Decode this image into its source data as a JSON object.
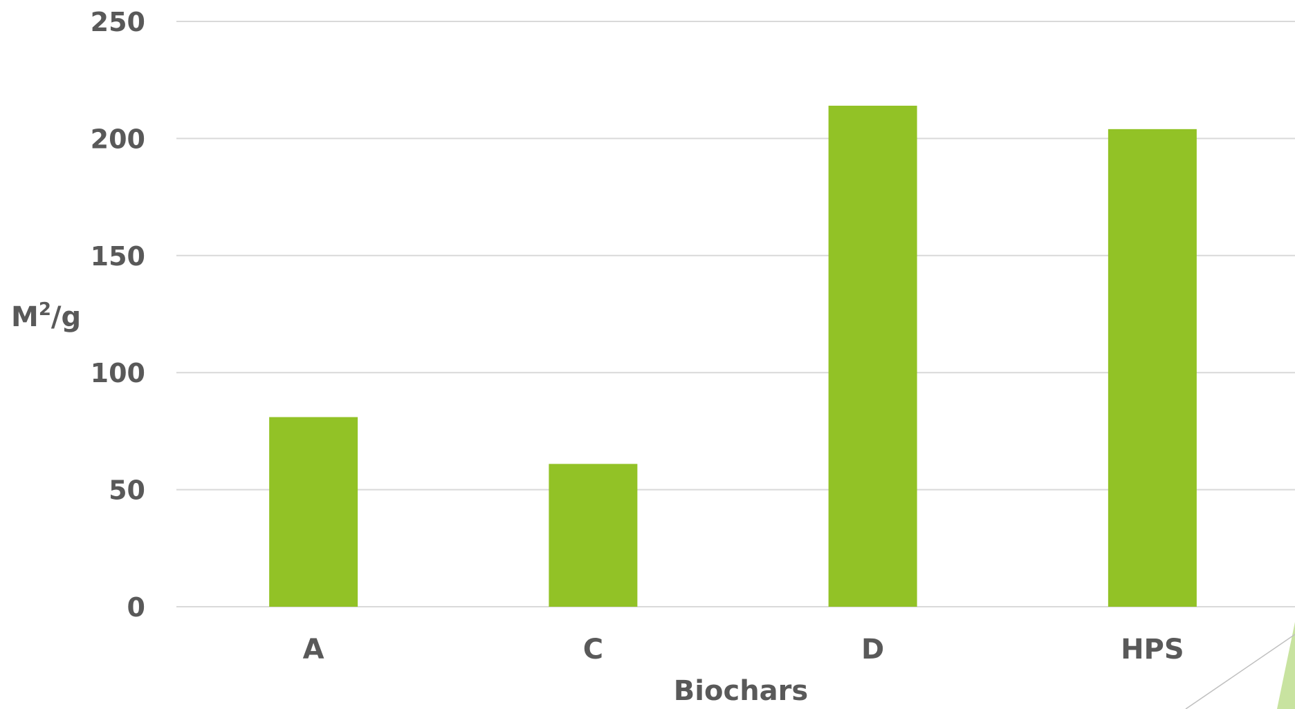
{
  "chart_data": {
    "type": "bar",
    "categories": [
      "A",
      "C",
      "D",
      "HPS"
    ],
    "values": [
      81,
      61,
      214,
      204
    ],
    "xlabel": "Biochars",
    "ylabel": {
      "base": "M",
      "sup": "2",
      "rest": "/g"
    },
    "ylim": [
      0,
      250
    ],
    "yticks": [
      "0",
      "50",
      "100",
      "150",
      "200",
      "250"
    ],
    "grid": true,
    "legend": "none",
    "colors": {
      "bar": "#92c226",
      "grid": "#d9d9d9",
      "text": "#595959",
      "decor_fill": "#c8e3a0",
      "decor_stroke": "#bfbfbf"
    }
  }
}
